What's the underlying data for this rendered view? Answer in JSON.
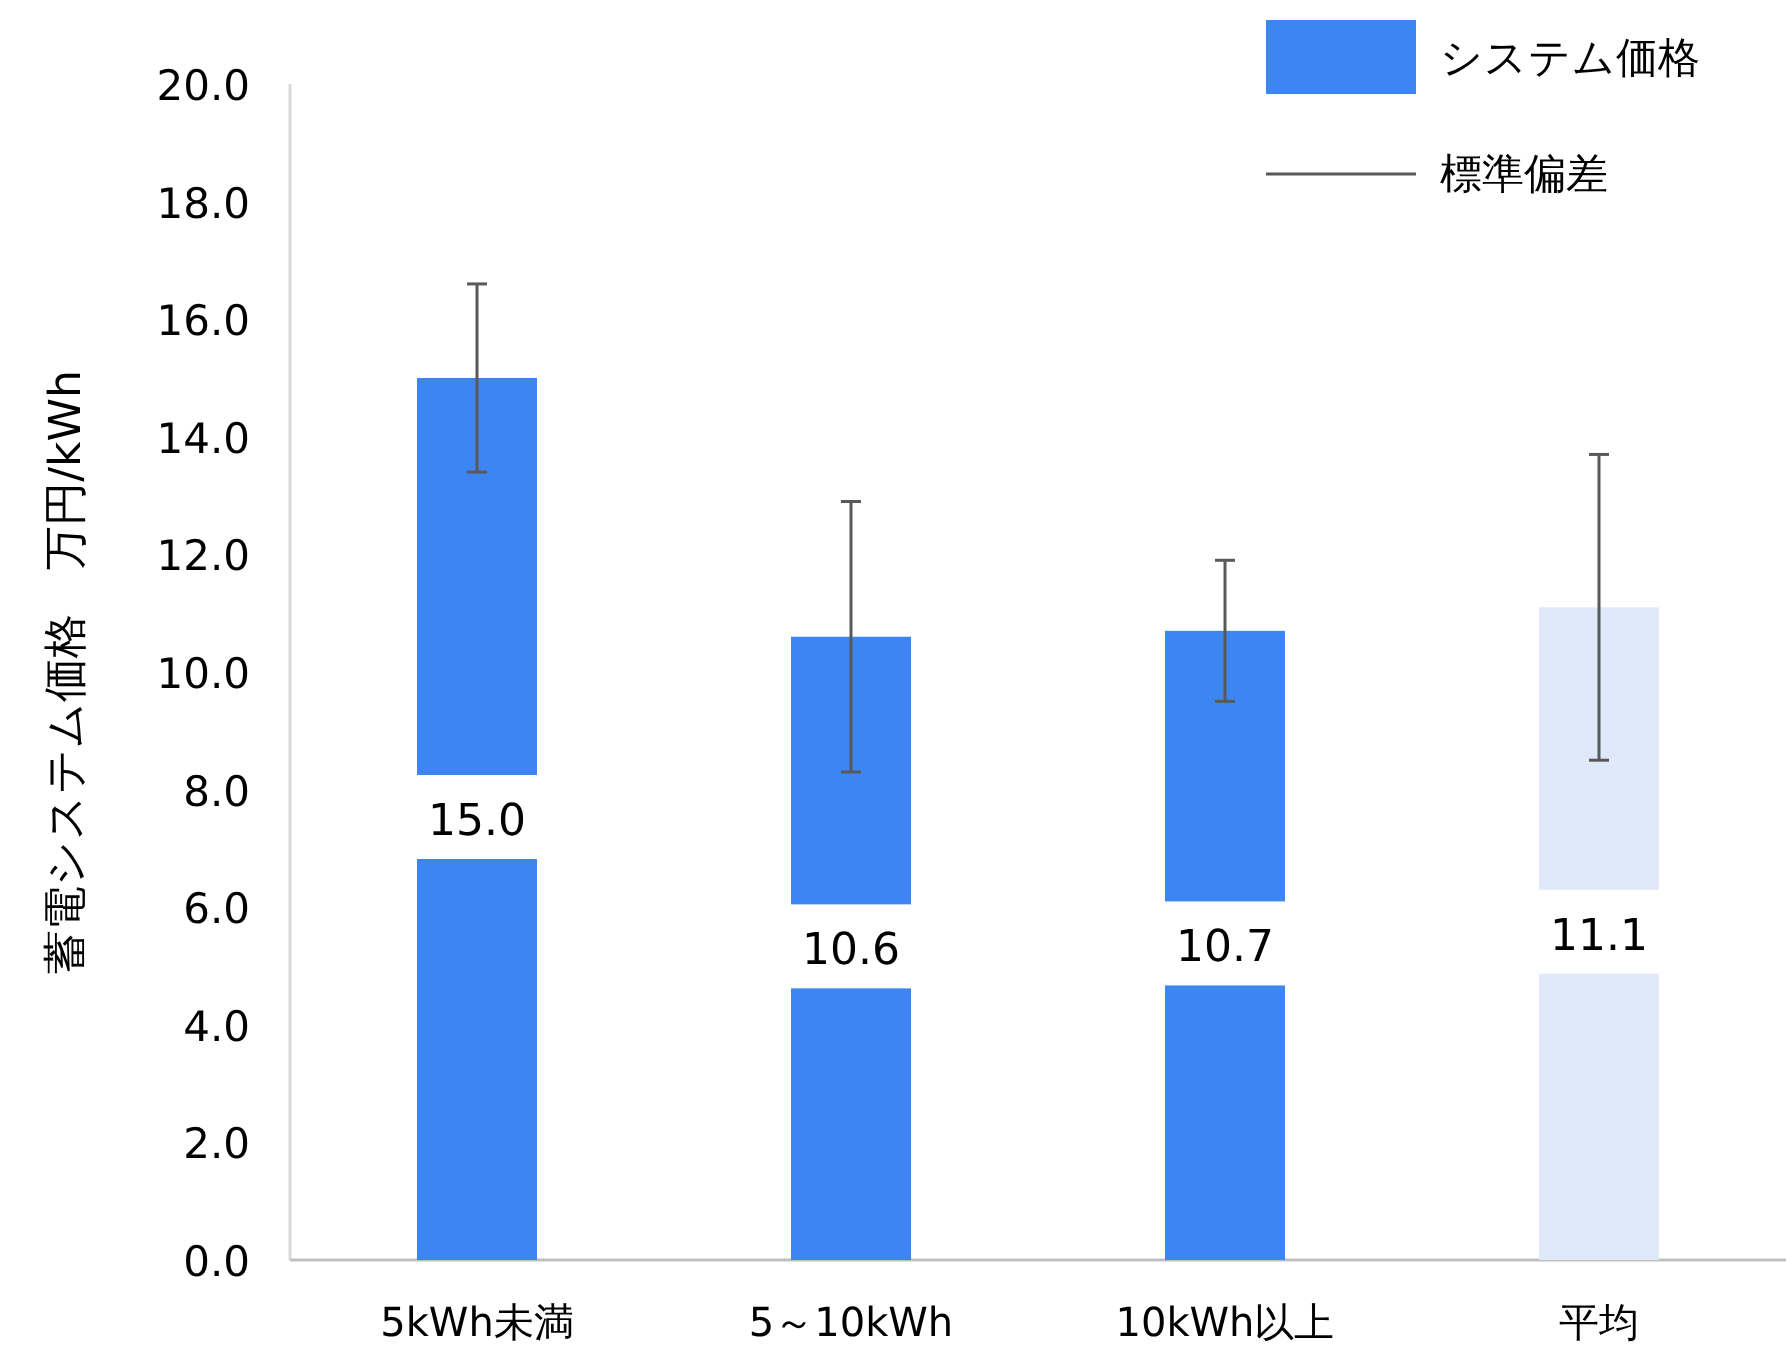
{
  "chart_data": {
    "type": "bar",
    "ylabel": "蓄電システム価格　万円/kWh",
    "categories": [
      "5kWh未満",
      "5～10kWh",
      "10kWh以上",
      "平均"
    ],
    "series": [
      {
        "name": "システム価格",
        "values": [
          15.0,
          10.6,
          10.7,
          11.1
        ],
        "colors": [
          "#3d85f0",
          "#3d85f0",
          "#3d85f0",
          "#e0e9f9"
        ],
        "errors": [
          1.6,
          2.3,
          1.2,
          2.6
        ],
        "value_labels": [
          "15.0",
          "10.6",
          "10.7",
          "11.1"
        ]
      }
    ],
    "annotations": [
      "標準偏差"
    ],
    "legend": "top right",
    "ylim": [
      0,
      20
    ],
    "yticks": [
      {
        "value": 0,
        "label": "0.0"
      },
      {
        "value": 2,
        "label": "2.0"
      },
      {
        "value": 4,
        "label": "4.0"
      },
      {
        "value": 6,
        "label": "6.0"
      },
      {
        "value": 8,
        "label": "8.0"
      },
      {
        "value": 10,
        "label": "10.0"
      },
      {
        "value": 12,
        "label": "12.0"
      },
      {
        "value": 14,
        "label": "14.0"
      },
      {
        "value": 16,
        "label": "16.0"
      },
      {
        "value": 18,
        "label": "18.0"
      },
      {
        "value": 20,
        "label": "20.0"
      }
    ]
  }
}
